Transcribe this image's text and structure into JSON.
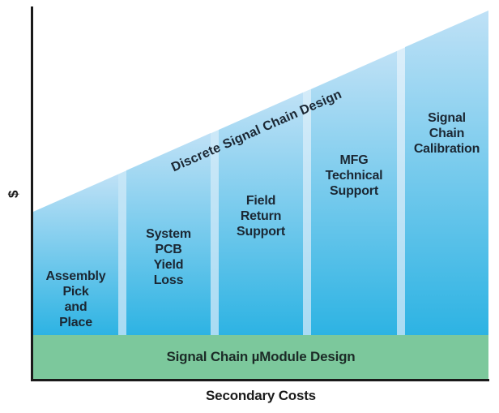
{
  "figure": {
    "ylabel": "$",
    "xlabel": "Secondary Costs",
    "diagonal_label": "Discrete Signal Chain Design",
    "base_band_label": "Signal Chain µModule Design"
  },
  "chart_data": {
    "type": "bar",
    "title": "",
    "xlabel": "Secondary Costs",
    "ylabel": "$",
    "categories": [
      "Assembly Pick and Place",
      "System PCB Yield Loss",
      "Field Return Support",
      "MFG Technical Support",
      "Signal Chain Calibration"
    ],
    "series": [
      {
        "name": "Discrete Signal Chain Design",
        "values": [
          175,
          226,
          276,
          326,
          377
        ]
      },
      {
        "name": "Signal Chain µModule Design (base band)",
        "values": [
          54,
          54,
          54,
          54,
          54
        ]
      }
    ],
    "value_note": "relative heights in pixels; bars rise linearly left to right under the diagonal 'Discrete Signal Chain Design' edge",
    "annotations": [
      "Discrete Signal Chain Design (diagonal label along rising top edge)",
      "Signal Chain µModule Design (green band across chart bottom)"
    ],
    "axis_ranges": {
      "y": "unlabeled, denoted $",
      "x": "categorical, no tick labels"
    },
    "grid": "off",
    "legend": "none"
  },
  "bars": [
    {
      "id": "assembly-pick-and-place",
      "lines": [
        "Assembly",
        "Pick",
        "and",
        "Place"
      ]
    },
    {
      "id": "system-pcb-yield-loss",
      "lines": [
        "System",
        "PCB",
        "Yield",
        "Loss"
      ]
    },
    {
      "id": "field-return-support",
      "lines": [
        "Field",
        "Return",
        "Support"
      ]
    },
    {
      "id": "mfg-technical-support",
      "lines": [
        "MFG",
        "Technical",
        "Support"
      ]
    },
    {
      "id": "signal-chain-calibration",
      "lines": [
        "Signal",
        "Chain",
        "Calibration"
      ]
    }
  ],
  "colors": {
    "bar_top": "#bfe1f6",
    "bar_bottom": "#2db3e3",
    "divider_top": "#e2f1fb",
    "divider_bottom": "#a9dbf3",
    "band_green": "#7cc89c",
    "label_dark": "#1b2733",
    "band_label_dark": "#1c2b27",
    "axis_black": "#1a1a1a"
  }
}
